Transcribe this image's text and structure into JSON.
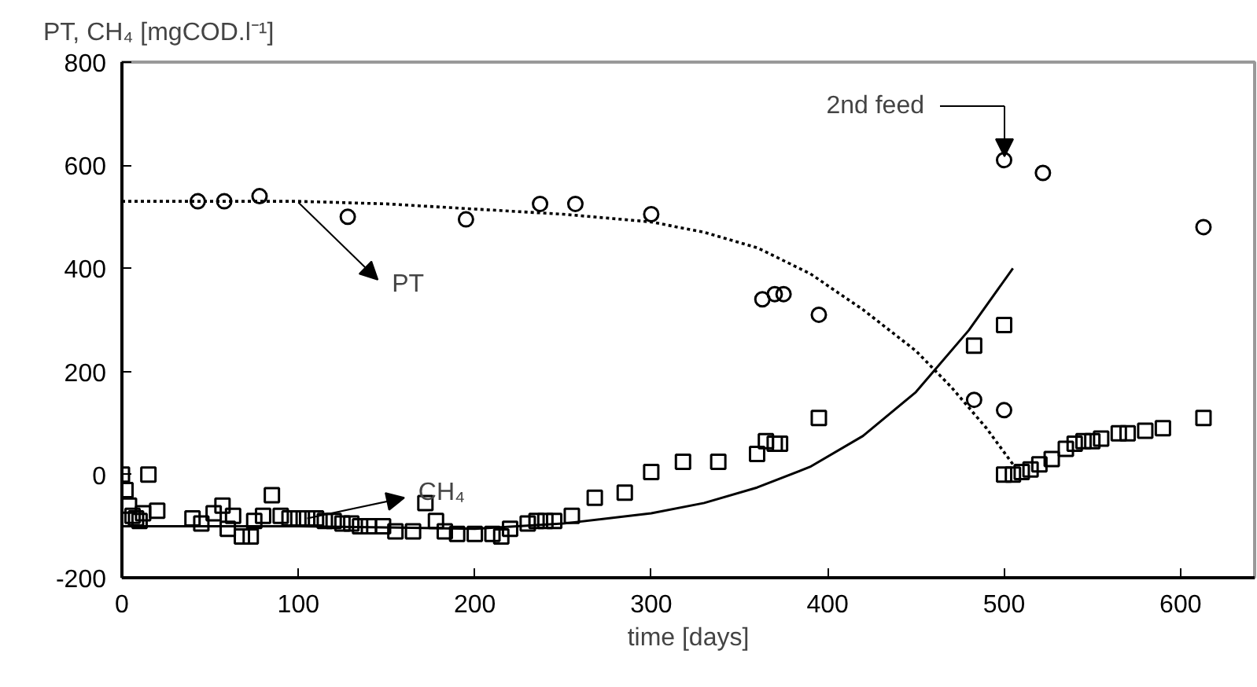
{
  "chart_data": {
    "type": "scatter",
    "ylabel": "PT, CH₄ [mgCOD.l⁻¹]",
    "xlabel": "time [days]",
    "xlim": [
      0,
      642
    ],
    "ylim": [
      -200,
      800
    ],
    "xticks": [
      0,
      100,
      200,
      300,
      400,
      500,
      600
    ],
    "yticks": [
      -200,
      0,
      200,
      400,
      600,
      800
    ],
    "grid": false,
    "series": [
      {
        "marker": "circle",
        "color": "#000000",
        "x": [
          43,
          58,
          78,
          128,
          195,
          237,
          257,
          300,
          363,
          370,
          375,
          395,
          483,
          500,
          500,
          522,
          613
        ],
        "values": [
          530,
          530,
          540,
          500,
          495,
          525,
          525,
          505,
          340,
          350,
          350,
          310,
          145,
          610,
          125,
          585,
          480
        ]
      },
      {
        "marker": "square",
        "color": "#000000",
        "x": [
          0,
          2,
          4,
          6,
          8,
          10,
          12,
          15,
          20,
          40,
          45,
          52,
          57,
          60,
          63,
          68,
          73,
          75,
          80,
          85,
          90,
          95,
          100,
          105,
          110,
          115,
          120,
          125,
          130,
          135,
          140,
          148,
          155,
          165,
          172,
          178,
          183,
          190,
          200,
          210,
          215,
          220,
          230,
          235,
          240,
          245,
          255,
          268,
          285,
          300,
          318,
          338,
          360,
          365,
          370,
          373,
          395,
          483,
          500,
          500,
          505,
          510,
          515,
          520,
          527,
          535,
          540,
          545,
          550,
          555,
          565,
          570,
          580,
          590,
          613
        ],
        "values": [
          0,
          -30,
          -60,
          -80,
          -85,
          -90,
          -75,
          0,
          -70,
          -85,
          -95,
          -75,
          -60,
          -105,
          -80,
          -120,
          -120,
          -90,
          -80,
          -40,
          -80,
          -85,
          -85,
          -85,
          -85,
          -90,
          -90,
          -95,
          -95,
          -100,
          -100,
          -100,
          -110,
          -110,
          -55,
          -90,
          -110,
          -115,
          -115,
          -115,
          -120,
          -105,
          -95,
          -90,
          -90,
          -90,
          -80,
          -45,
          -35,
          5,
          25,
          25,
          40,
          65,
          60,
          60,
          110,
          250,
          290,
          0,
          0,
          5,
          10,
          20,
          30,
          50,
          60,
          65,
          65,
          70,
          80,
          80,
          85,
          90,
          110
        ]
      },
      {
        "type": "line",
        "line_style": "dotted",
        "marker": "none",
        "color": "#000000",
        "x": [
          0,
          100,
          150,
          200,
          250,
          300,
          330,
          360,
          390,
          420,
          450,
          470,
          490,
          505
        ],
        "values": [
          530,
          530,
          525,
          515,
          505,
          490,
          470,
          440,
          390,
          320,
          240,
          170,
          90,
          20
        ]
      },
      {
        "type": "line",
        "line_style": "solid",
        "marker": "none",
        "color": "#000000",
        "x": [
          0,
          100,
          200,
          250,
          300,
          330,
          360,
          390,
          420,
          450,
          480,
          505
        ],
        "values": [
          -100,
          -100,
          -105,
          -95,
          -75,
          -55,
          -25,
          15,
          75,
          160,
          280,
          400
        ]
      }
    ],
    "annotations": [
      {
        "text": "PT",
        "x": 100,
        "y": 528
      },
      {
        "text": "CH₄",
        "x": 105,
        "y": -85
      },
      "2nd feed"
    ]
  }
}
